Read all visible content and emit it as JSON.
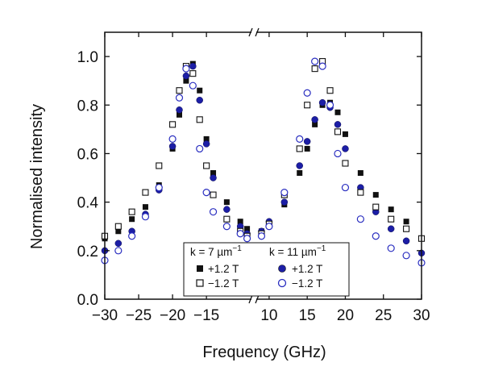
{
  "chart_data": {
    "type": "scatter",
    "xlabel": "Frequency (GHz)",
    "ylabel": "Normalised intensity",
    "x_broken_axis": true,
    "x_segments": [
      {
        "range": [
          -30,
          -8
        ],
        "ticks": [
          -30,
          -25,
          -20,
          -15
        ],
        "tick_labels": [
          "−30",
          "−25",
          "−20",
          "−15"
        ]
      },
      {
        "range": [
          8,
          30
        ],
        "ticks": [
          10,
          15,
          20,
          25,
          30
        ],
        "tick_labels": [
          "10",
          "15",
          "20",
          "25",
          "30"
        ]
      }
    ],
    "ylim": [
      0,
      1.1
    ],
    "yticks": [
      0.0,
      0.2,
      0.4,
      0.6,
      0.8,
      1.0
    ],
    "ytick_labels": [
      "0.0",
      "0.2",
      "0.4",
      "0.6",
      "0.8",
      "1.0"
    ],
    "grid": false,
    "legend": {
      "placement": "bottom-center",
      "groups": [
        {
          "title": "k = 7 µm",
          "title_sup": "−1",
          "entries": [
            "+1.2 T",
            "−1.2 T"
          ]
        },
        {
          "title": "k = 11 µm",
          "title_sup": "−1",
          "entries": [
            "+1.2 T",
            "−1.2 T"
          ]
        }
      ]
    },
    "colors": {
      "k7": "#111111",
      "k11": "#1c1ea6",
      "k11_open": "#2a2ec0"
    },
    "series": [
      {
        "name": "k = 7 µm⁻¹ +1.2 T",
        "marker": "square-filled",
        "color": "#111111",
        "x": [
          -30,
          -28,
          -26,
          -24,
          -22,
          -20,
          -19,
          -18,
          -17,
          -16,
          -15,
          -14,
          -12,
          -10,
          -9,
          9,
          10,
          12,
          14,
          15,
          16,
          17,
          18,
          19,
          20,
          22,
          24,
          26,
          28,
          30
        ],
        "y": [
          0.25,
          0.28,
          0.33,
          0.38,
          0.47,
          0.62,
          0.76,
          0.9,
          0.97,
          0.86,
          0.66,
          0.52,
          0.4,
          0.32,
          0.29,
          0.28,
          0.31,
          0.39,
          0.52,
          0.62,
          0.72,
          0.8,
          0.81,
          0.77,
          0.68,
          0.52,
          0.43,
          0.37,
          0.32,
          0.25
        ]
      },
      {
        "name": "k = 7 µm⁻¹ −1.2 T",
        "marker": "square-open",
        "color": "#111111",
        "x": [
          -30,
          -28,
          -26,
          -24,
          -22,
          -20,
          -19,
          -18,
          -17,
          -16,
          -15,
          -14,
          -12,
          -10,
          -9,
          9,
          10,
          12,
          14,
          15,
          16,
          17,
          18,
          19,
          20,
          22,
          24,
          26,
          28,
          30
        ],
        "y": [
          0.26,
          0.3,
          0.36,
          0.44,
          0.55,
          0.72,
          0.86,
          0.96,
          0.93,
          0.74,
          0.55,
          0.43,
          0.33,
          0.28,
          0.26,
          0.27,
          0.31,
          0.43,
          0.62,
          0.8,
          0.95,
          0.98,
          0.86,
          0.69,
          0.56,
          0.44,
          0.38,
          0.33,
          0.29,
          0.25
        ]
      },
      {
        "name": "k = 11 µm⁻¹ +1.2 T",
        "marker": "circle-filled",
        "color": "#1c1ea6",
        "x": [
          -30,
          -28,
          -26,
          -24,
          -22,
          -20,
          -19,
          -18,
          -17,
          -16,
          -15,
          -14,
          -12,
          -10,
          -9,
          9,
          10,
          12,
          14,
          15,
          16,
          17,
          18,
          19,
          20,
          22,
          24,
          26,
          28,
          30
        ],
        "y": [
          0.2,
          0.23,
          0.28,
          0.35,
          0.45,
          0.63,
          0.78,
          0.92,
          0.96,
          0.82,
          0.64,
          0.5,
          0.37,
          0.3,
          0.27,
          0.28,
          0.32,
          0.4,
          0.55,
          0.65,
          0.74,
          0.81,
          0.79,
          0.72,
          0.62,
          0.46,
          0.36,
          0.29,
          0.24,
          0.19
        ]
      },
      {
        "name": "k = 11 µm⁻¹ −1.2 T",
        "marker": "circle-open",
        "color": "#2a2ec0",
        "x": [
          -30,
          -28,
          -26,
          -24,
          -22,
          -20,
          -19,
          -18,
          -17,
          -16,
          -15,
          -14,
          -12,
          -10,
          -9,
          9,
          10,
          12,
          14,
          15,
          16,
          17,
          18,
          19,
          20,
          22,
          24,
          26,
          28,
          30
        ],
        "y": [
          0.16,
          0.2,
          0.26,
          0.34,
          0.46,
          0.66,
          0.83,
          0.95,
          0.88,
          0.62,
          0.44,
          0.36,
          0.3,
          0.27,
          0.25,
          0.26,
          0.3,
          0.44,
          0.66,
          0.85,
          0.98,
          0.96,
          0.8,
          0.6,
          0.46,
          0.33,
          0.26,
          0.21,
          0.18,
          0.15
        ]
      }
    ]
  }
}
